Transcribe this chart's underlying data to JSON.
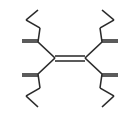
{
  "bg_color": "#ffffff",
  "line_color": "#2a2a2a",
  "line_width": 1.1,
  "figsize": [
    1.4,
    1.17
  ],
  "dpi": 100
}
